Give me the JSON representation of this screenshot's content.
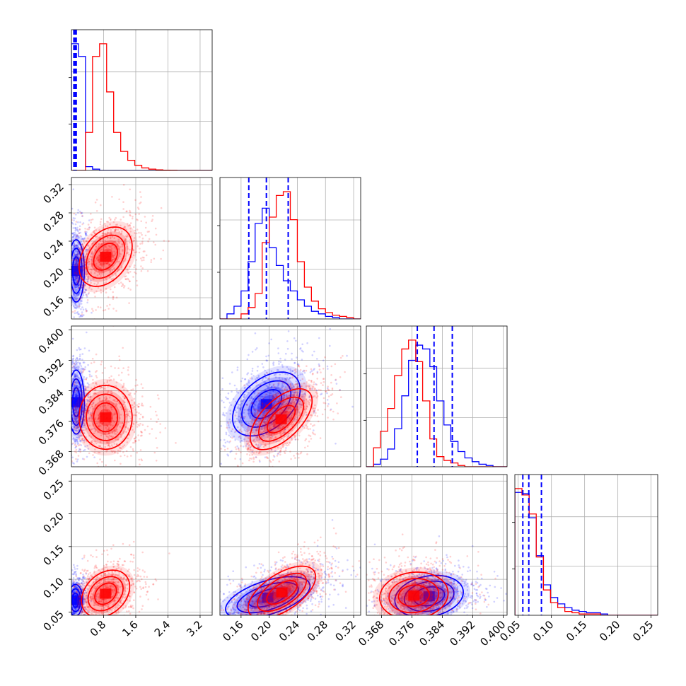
{
  "chart_data": {
    "type": "corner",
    "title": "",
    "grid": true,
    "legend": "none",
    "colors": {
      "series_a": "#0000ff",
      "series_b": "#ff0000"
    },
    "series": [
      {
        "color": "#0000ff"
      },
      {
        "color": "#ff0000"
      }
    ],
    "parameters": [
      {
        "range": [
          0.0,
          3.5
        ],
        "ticks": [
          "0.8",
          "1.6",
          "2.4",
          "3.2"
        ],
        "tick_values": [
          0.8,
          1.6,
          2.4,
          3.2
        ],
        "quantile_lines": [
          0.06,
          0.09,
          0.12
        ],
        "hist": {
          "edges": [
            0.0,
            0.175,
            0.35,
            0.525,
            0.7,
            0.875,
            1.05,
            1.225,
            1.4,
            1.575,
            1.75,
            1.925,
            2.1,
            2.275,
            2.45,
            2.625,
            2.8,
            2.975,
            3.15,
            3.325,
            3.5
          ],
          "series_a": [
            1.0,
            0.9,
            0.03,
            0.01,
            0.0,
            0,
            0,
            0,
            0,
            0,
            0,
            0,
            0,
            0,
            0,
            0,
            0,
            0,
            0,
            0
          ],
          "series_b": [
            0.0,
            0.0,
            0.3,
            0.9,
            1.0,
            0.62,
            0.3,
            0.15,
            0.08,
            0.04,
            0.02,
            0.01,
            0.005,
            0.002,
            0.001,
            0,
            0,
            0,
            0,
            0
          ]
        }
      },
      {
        "range": [
          0.13,
          0.33
        ],
        "ticks": [
          "0.16",
          "0.20",
          "0.24",
          "0.28",
          "0.32"
        ],
        "tick_values": [
          0.16,
          0.2,
          0.24,
          0.28,
          0.32
        ],
        "quantile_lines": [
          0.171,
          0.196,
          0.227
        ],
        "hist": {
          "edges": [
            0.13,
            0.14,
            0.15,
            0.16,
            0.17,
            0.18,
            0.19,
            0.2,
            0.21,
            0.22,
            0.23,
            0.24,
            0.25,
            0.26,
            0.27,
            0.28,
            0.29,
            0.3,
            0.31,
            0.32,
            0.33
          ],
          "series_a": [
            0.0,
            0.04,
            0.1,
            0.22,
            0.45,
            0.75,
            0.87,
            0.56,
            0.42,
            0.3,
            0.22,
            0.15,
            0.1,
            0.06,
            0.04,
            0.02,
            0.01,
            0.0,
            0.0,
            0.0
          ],
          "series_b": [
            0.0,
            0.0,
            0.0,
            0.04,
            0.09,
            0.2,
            0.6,
            0.8,
            0.97,
            1.0,
            0.78,
            0.45,
            0.25,
            0.14,
            0.08,
            0.05,
            0.03,
            0.02,
            0.01,
            0.0
          ]
        }
      },
      {
        "range": [
          0.364,
          0.401
        ],
        "ticks": [
          "0.368",
          "0.376",
          "0.384",
          "0.392",
          "0.400"
        ],
        "tick_values": [
          0.368,
          0.376,
          0.384,
          0.392,
          0.4
        ],
        "quantile_lines": [
          0.3774,
          0.3818,
          0.3866
        ],
        "hist": {
          "edges": [
            0.364,
            0.3659,
            0.3677,
            0.3696,
            0.3714,
            0.3733,
            0.3751,
            0.377,
            0.3788,
            0.3807,
            0.3825,
            0.3844,
            0.3862,
            0.3881,
            0.3899,
            0.3918,
            0.3936,
            0.3955,
            0.3973,
            0.3992,
            0.401
          ],
          "series_a": [
            0.0,
            0.02,
            0.06,
            0.14,
            0.3,
            0.56,
            0.84,
            0.96,
            0.93,
            0.79,
            0.52,
            0.33,
            0.2,
            0.12,
            0.07,
            0.04,
            0.02,
            0.01,
            0.0,
            0.0
          ],
          "series_b": [
            0.0,
            0.15,
            0.28,
            0.46,
            0.72,
            0.93,
            1.0,
            0.83,
            0.52,
            0.22,
            0.08,
            0.05,
            0.03,
            0.01,
            0.0,
            0,
            0,
            0,
            0,
            0
          ]
        }
      },
      {
        "range": [
          0.045,
          0.26
        ],
        "ticks": [
          "0.05",
          "0.10",
          "0.15",
          "0.20",
          "0.25"
        ],
        "tick_values": [
          0.05,
          0.1,
          0.15,
          0.2,
          0.25
        ],
        "quantile_lines": [
          0.057,
          0.066,
          0.085
        ],
        "hist": {
          "edges": [
            0.045,
            0.0557,
            0.0665,
            0.0772,
            0.088,
            0.0987,
            0.1095,
            0.1202,
            0.131,
            0.1417,
            0.1525,
            0.1632,
            0.174,
            0.1847,
            0.1955,
            0.2062,
            0.217,
            0.2277,
            0.2385,
            0.2492,
            0.26
          ],
          "series_a": [
            0.97,
            0.96,
            0.77,
            0.47,
            0.24,
            0.14,
            0.09,
            0.06,
            0.04,
            0.03,
            0.02,
            0.02,
            0.01,
            0.0,
            0,
            0,
            0,
            0,
            0,
            0
          ],
          "series_b": [
            1.0,
            0.95,
            0.8,
            0.46,
            0.2,
            0.1,
            0.06,
            0.03,
            0.02,
            0.01,
            0.01,
            0.01,
            0,
            0,
            0,
            0,
            0,
            0,
            0,
            0
          ]
        }
      }
    ],
    "pairs": [
      {
        "x": 0,
        "y": 1,
        "series_a": {
          "center": [
            0.12,
            0.198
          ],
          "sigma": [
            0.1,
            0.022
          ],
          "rho": 0.0
        },
        "series_b": {
          "center": [
            0.85,
            0.218
          ],
          "sigma": [
            0.33,
            0.021
          ],
          "rho": 0.35
        }
      },
      {
        "x": 0,
        "y": 2,
        "series_a": {
          "center": [
            0.12,
            0.381
          ],
          "sigma": [
            0.1,
            0.0042
          ],
          "rho": 0.0
        },
        "series_b": {
          "center": [
            0.85,
            0.377
          ],
          "sigma": [
            0.33,
            0.0042
          ],
          "rho": 0.0
        }
      },
      {
        "x": 1,
        "y": 2,
        "series_a": {
          "center": [
            0.196,
            0.3805
          ],
          "sigma": [
            0.024,
            0.0042
          ],
          "rho": 0.45
        },
        "series_b": {
          "center": [
            0.217,
            0.3765
          ],
          "sigma": [
            0.022,
            0.004
          ],
          "rho": 0.6
        }
      },
      {
        "x": 0,
        "y": 3,
        "series_a": {
          "center": [
            0.1,
            0.068
          ],
          "sigma": [
            0.09,
            0.012
          ],
          "rho": 0.0
        },
        "series_b": {
          "center": [
            0.85,
            0.078
          ],
          "sigma": [
            0.3,
            0.018
          ],
          "rho": 0.3
        }
      },
      {
        "x": 1,
        "y": 3,
        "series_a": {
          "center": [
            0.198,
            0.072
          ],
          "sigma": [
            0.03,
            0.016
          ],
          "rho": 0.55
        },
        "series_b": {
          "center": [
            0.218,
            0.08
          ],
          "sigma": [
            0.024,
            0.02
          ],
          "rho": 0.6
        }
      },
      {
        "x": 2,
        "y": 3,
        "series_a": {
          "center": [
            0.3805,
            0.074
          ],
          "sigma": [
            0.0045,
            0.016
          ],
          "rho": 0.2
        },
        "series_b": {
          "center": [
            0.3765,
            0.075
          ],
          "sigma": [
            0.0045,
            0.018
          ],
          "rho": 0.1
        }
      }
    ]
  }
}
